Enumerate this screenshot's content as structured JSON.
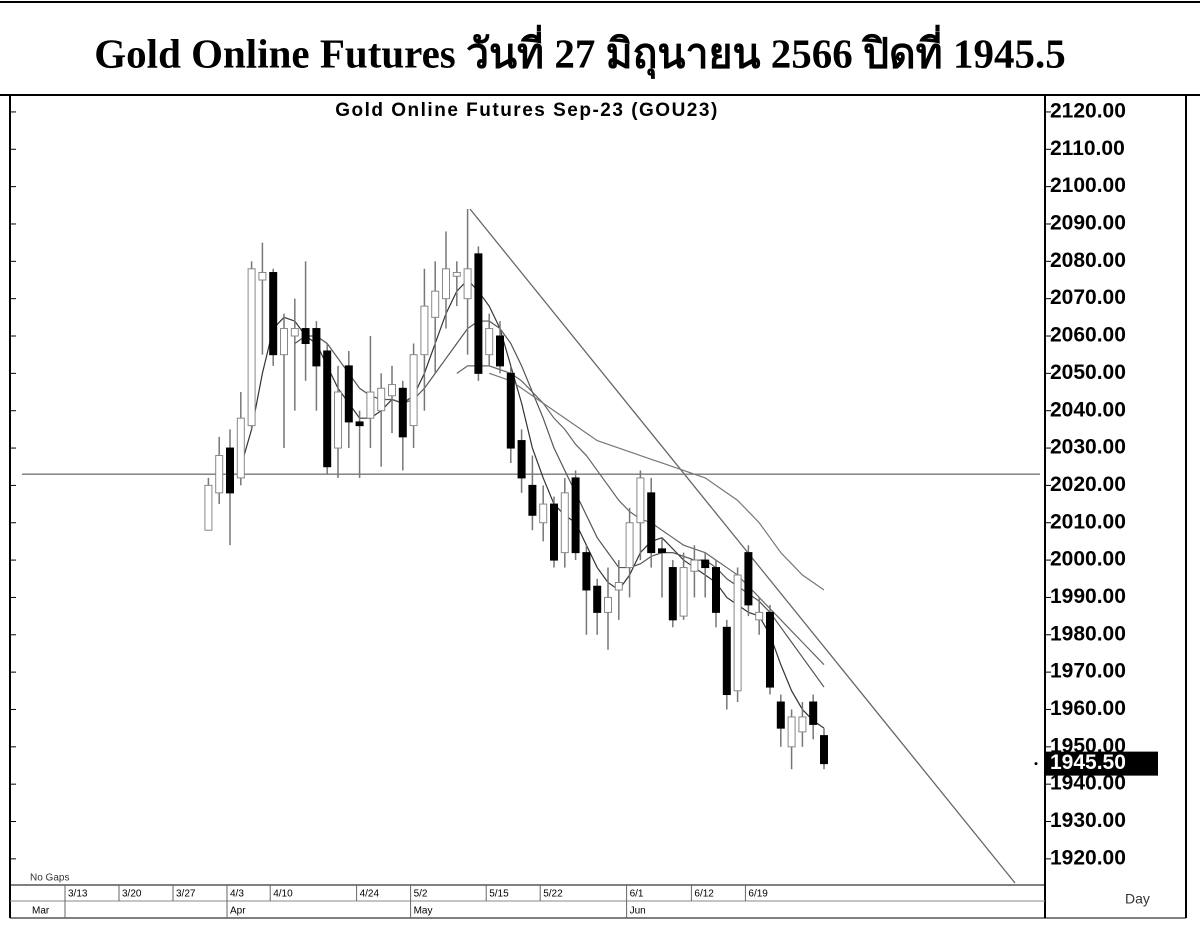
{
  "header": {
    "title": "Gold Online Futures วันที่ 27 มิถุนายน 2566 ปิดที่ 1945.5"
  },
  "chart_data": {
    "type": "candlestick",
    "title": "Gold Online Futures Sep-23 (GOU23)",
    "note": "No Gaps",
    "period": "Day",
    "categories": [
      "3/13",
      null,
      null,
      null,
      null,
      "3/20",
      null,
      null,
      null,
      null,
      "3/27",
      null,
      null,
      null,
      null,
      "4/3",
      null,
      null,
      null,
      "4/10",
      null,
      null,
      null,
      null,
      null,
      null,
      null,
      "4/24",
      null,
      null,
      null,
      null,
      "5/2",
      null,
      null,
      null,
      null,
      null,
      null,
      "5/15",
      null,
      null,
      null,
      null,
      "5/22",
      null,
      null,
      null,
      null,
      null,
      null,
      null,
      "6/1",
      null,
      null,
      null,
      null,
      null,
      "6/12",
      null,
      null,
      null,
      null,
      "6/19",
      null,
      null,
      null,
      null,
      null,
      null,
      null,
      null
    ],
    "months": [
      "Mar",
      null,
      null,
      null,
      null,
      null,
      null,
      null,
      null,
      null,
      null,
      null,
      null,
      null,
      null,
      "Apr",
      null,
      null,
      null,
      null,
      null,
      null,
      null,
      null,
      null,
      null,
      null,
      null,
      null,
      null,
      null,
      null,
      "May",
      null,
      null,
      null,
      null,
      null,
      null,
      null,
      null,
      null,
      null,
      null,
      null,
      null,
      null,
      null,
      null,
      null,
      null,
      null,
      "Jun",
      null,
      null,
      null,
      null,
      null,
      null,
      null,
      null,
      null,
      null,
      null,
      null,
      null,
      null,
      null,
      null,
      null,
      null,
      null
    ],
    "open": [
      null,
      null,
      null,
      null,
      null,
      null,
      null,
      null,
      null,
      null,
      null,
      null,
      null,
      2008,
      2018,
      2030,
      2022,
      2036,
      2075,
      2077,
      2055,
      2060,
      2062,
      2062,
      2056,
      2030,
      2052,
      2037,
      2038,
      2040,
      2044,
      2046,
      2036,
      2055,
      2065,
      2070,
      2076,
      2070,
      2082,
      2055,
      2060,
      2050,
      2032,
      2020,
      2010,
      2015,
      2002,
      2022,
      2002,
      1993,
      1986,
      1992,
      1998,
      2010,
      2018,
      2003,
      1998,
      1985,
      1997,
      2000,
      1998,
      1982,
      1965,
      2002,
      1984,
      1986,
      1962,
      1950,
      1954,
      1962,
      1953,
      null
    ],
    "high": [
      null,
      null,
      null,
      null,
      null,
      null,
      null,
      null,
      null,
      null,
      null,
      null,
      null,
      2022,
      2033,
      2035,
      2045,
      2080,
      2085,
      2078,
      2066,
      2070,
      2080,
      2064,
      2058,
      2052,
      2056,
      2040,
      2060,
      2050,
      2052,
      2048,
      2058,
      2078,
      2080,
      2088,
      2080,
      2094,
      2084,
      2066,
      2064,
      2052,
      2035,
      2028,
      2020,
      2017,
      2022,
      2024,
      2004,
      1995,
      1998,
      2000,
      2014,
      2024,
      2022,
      2006,
      2000,
      2002,
      2004,
      2002,
      2000,
      1984,
      1998,
      2004,
      1990,
      1988,
      1964,
      1960,
      1962,
      1964,
      1955,
      null
    ],
    "low": [
      null,
      null,
      null,
      null,
      null,
      null,
      null,
      null,
      null,
      null,
      null,
      null,
      null,
      2008,
      2015,
      2004,
      2020,
      2035,
      2055,
      2052,
      2030,
      2040,
      2048,
      2040,
      2023,
      2022,
      2030,
      2022,
      2030,
      2025,
      2034,
      2024,
      2030,
      2040,
      2050,
      2062,
      2068,
      2055,
      2048,
      2052,
      2050,
      2026,
      2018,
      2008,
      2005,
      1998,
      1998,
      2000,
      1980,
      1980,
      1976,
      1984,
      1990,
      2000,
      1998,
      1990,
      1982,
      1984,
      1990,
      1990,
      1982,
      1960,
      1962,
      1985,
      1980,
      1964,
      1950,
      1944,
      1950,
      1952,
      1944,
      null
    ],
    "close": [
      null,
      null,
      null,
      null,
      null,
      null,
      null,
      null,
      null,
      null,
      null,
      null,
      null,
      2020,
      2028,
      2018,
      2038,
      2078,
      2077,
      2055,
      2062,
      2062,
      2058,
      2052,
      2025,
      2045,
      2037,
      2036,
      2045,
      2046,
      2047,
      2033,
      2055,
      2068,
      2072,
      2078,
      2077,
      2078,
      2050,
      2062,
      2052,
      2030,
      2022,
      2012,
      2015,
      2000,
      2018,
      2002,
      1992,
      1986,
      1990,
      1994,
      2010,
      2022,
      2002,
      2002,
      1984,
      1998,
      2000,
      1998,
      1986,
      1964,
      1996,
      1988,
      1986,
      1966,
      1955,
      1958,
      1958,
      1956,
      1945.5,
      null
    ],
    "last_label": "1945.50",
    "lines": [
      {
        "color": "#333333",
        "values": [
          null,
          null,
          null,
          null,
          null,
          null,
          null,
          null,
          null,
          null,
          null,
          null,
          null,
          null,
          null,
          null,
          2025,
          2035,
          2050,
          2062,
          2065,
          2064,
          2060,
          2058,
          2052,
          2046,
          2042,
          2038,
          2038,
          2040,
          2043,
          2042,
          2044,
          2050,
          2058,
          2066,
          2072,
          2075,
          2072,
          2068,
          2062,
          2052,
          2042,
          2030,
          2022,
          2015,
          2012,
          2010,
          2004,
          1998,
          1994,
          1992,
          1996,
          2002,
          2005,
          2006,
          2003,
          2000,
          1998,
          1996,
          1994,
          1990,
          1988,
          1986,
          1985,
          1980,
          1972,
          1965,
          1960,
          1957,
          1955,
          null
        ]
      },
      {
        "color": "#555555",
        "values": [
          null,
          null,
          null,
          null,
          null,
          null,
          null,
          null,
          null,
          null,
          null,
          null,
          null,
          null,
          null,
          null,
          null,
          null,
          null,
          null,
          null,
          2058,
          2060,
          2060,
          2058,
          2054,
          2050,
          2046,
          2044,
          2043,
          2043,
          2042,
          2043,
          2046,
          2050,
          2054,
          2058,
          2062,
          2064,
          2064,
          2062,
          2058,
          2052,
          2045,
          2038,
          2030,
          2024,
          2018,
          2012,
          2006,
          2002,
          1998,
          1998,
          1999,
          2001,
          2002,
          2002,
          2001,
          2000,
          2000,
          1998,
          1995,
          1993,
          1991,
          1989,
          1986,
          1982,
          1978,
          1974,
          1970,
          1966,
          null
        ]
      },
      {
        "color": "#666666",
        "values": [
          null,
          null,
          null,
          null,
          null,
          null,
          null,
          null,
          null,
          null,
          null,
          null,
          null,
          null,
          null,
          null,
          null,
          null,
          null,
          null,
          null,
          null,
          null,
          null,
          null,
          null,
          null,
          null,
          null,
          null,
          null,
          null,
          null,
          null,
          null,
          null,
          2050,
          2052,
          2052,
          2052,
          2051,
          2050,
          2048,
          2045,
          2042,
          2038,
          2035,
          2031,
          2028,
          2024,
          2020,
          2016,
          2013,
          2011,
          2010,
          2008,
          2006,
          2004,
          2003,
          2002,
          2000,
          1998,
          1996,
          1993,
          1990,
          1987,
          1984,
          1981,
          1978,
          1975,
          1972,
          null
        ]
      },
      {
        "color": "#777777",
        "values": [
          null,
          null,
          null,
          null,
          null,
          null,
          null,
          null,
          null,
          null,
          null,
          null,
          null,
          null,
          null,
          null,
          null,
          null,
          null,
          null,
          null,
          null,
          null,
          null,
          null,
          null,
          null,
          null,
          null,
          null,
          null,
          null,
          null,
          null,
          null,
          null,
          null,
          null,
          null,
          2050,
          2049,
          2048,
          2046,
          2044,
          2042,
          2040,
          2038,
          2036,
          2034,
          2032,
          2031,
          2030,
          2029,
          2028,
          2027,
          2026,
          2025,
          2024,
          2023,
          2022,
          2020,
          2018,
          2016,
          2013,
          2010,
          2006,
          2002,
          1999,
          1996,
          1994,
          1992,
          null
        ]
      }
    ],
    "hline": 2023,
    "ylim": [
      1913,
      2124
    ],
    "yticks": [
      {
        "value": 1920,
        "label": "1920.00"
      },
      {
        "value": 1930,
        "label": "1930.00"
      },
      {
        "value": 1940,
        "label": "1940.00"
      },
      {
        "value": 1950,
        "label": "1950.00"
      },
      {
        "value": 1960,
        "label": "1960.00"
      },
      {
        "value": 1970,
        "label": "1970.00"
      },
      {
        "value": 1980,
        "label": "1980.00"
      },
      {
        "value": 1990,
        "label": "1990.00"
      },
      {
        "value": 2000,
        "label": "2000.00"
      },
      {
        "value": 2010,
        "label": "2010.00"
      },
      {
        "value": 2020,
        "label": "2020.00"
      },
      {
        "value": 2030,
        "label": "2030.00"
      },
      {
        "value": 2040,
        "label": "2040.00"
      },
      {
        "value": 2050,
        "label": "2050.00"
      },
      {
        "value": 2060,
        "label": "2060.00"
      },
      {
        "value": 2070,
        "label": "2070.00"
      },
      {
        "value": 2080,
        "label": "2080.00"
      },
      {
        "value": 2090,
        "label": "2090.00"
      },
      {
        "value": 2100,
        "label": "2100.00"
      },
      {
        "value": 2110,
        "label": "2110.00"
      },
      {
        "value": 2120,
        "label": "2120.00"
      }
    ]
  }
}
